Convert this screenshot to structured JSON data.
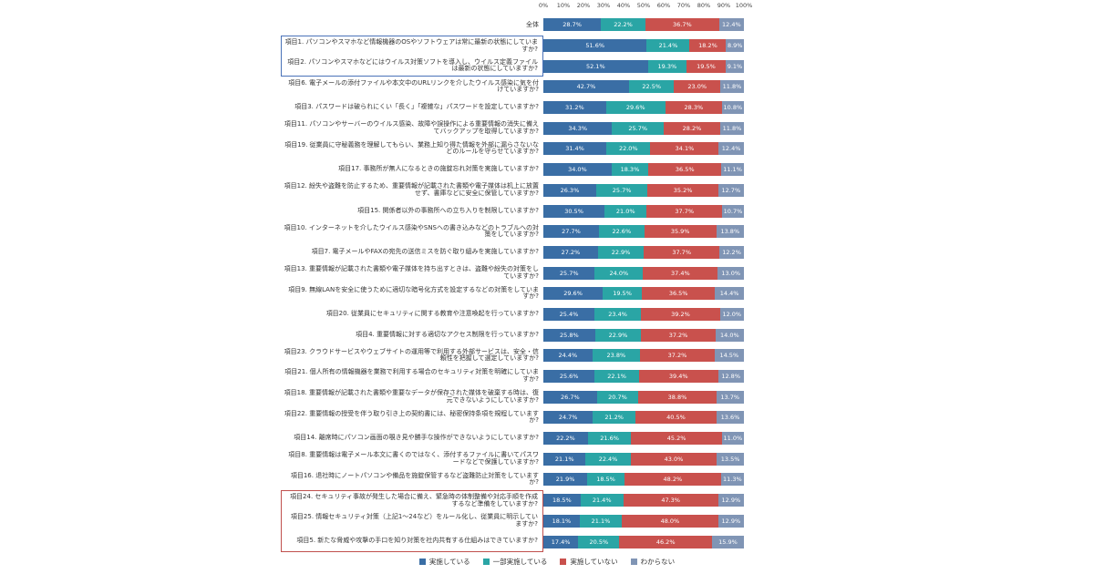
{
  "chart_data": {
    "type": "bar",
    "stacked": true,
    "orientation": "horizontal",
    "title": "",
    "x_axis": {
      "range": [
        0,
        100
      ],
      "ticks": [
        "0%",
        "10%",
        "20%",
        "30%",
        "40%",
        "50%",
        "60%",
        "70%",
        "80%",
        "90%",
        "100%"
      ]
    },
    "legend": [
      {
        "label": "実施している",
        "color": "#3a6ea5"
      },
      {
        "label": "一部実施している",
        "color": "#2aa5a5"
      },
      {
        "label": "実施していない",
        "color": "#c9514d"
      },
      {
        "label": "わからない",
        "color": "#8095b5"
      }
    ],
    "frame_colors": {
      "blue": "#4a72b8",
      "red": "#c0504d"
    },
    "rows": [
      {
        "label": "全体",
        "values": [
          28.7,
          22.2,
          36.7,
          12.4
        ]
      },
      {
        "label": "項目1. パソコンやスマホなど情報機器のOSやソフトウェアは常に最新の状態にしていますか?",
        "values": [
          51.6,
          21.4,
          18.2,
          8.9
        ],
        "frame": "blue"
      },
      {
        "label": "項目2. パソコンやスマホなどにはウイルス対策ソフトを導入し、ウイルス定義ファイルは最新の状態にしていますか?",
        "values": [
          52.1,
          19.3,
          19.5,
          9.1
        ],
        "frame": "blue"
      },
      {
        "label": "項目6. 電子メールの添付ファイルや本文中のURLリンクを介したウイルス感染に気を付けていますか?",
        "values": [
          42.7,
          22.5,
          23.0,
          11.8
        ]
      },
      {
        "label": "項目3. パスワードは破られにくい「長く」「複雑な」パスワードを設定していますか?",
        "values": [
          31.2,
          29.6,
          28.3,
          10.8
        ]
      },
      {
        "label": "項目11. パソコンやサーバーのウイルス感染、故障や誤操作による重要情報の消失に備えてバックアップを取得していますか?",
        "values": [
          34.3,
          25.7,
          28.2,
          11.8
        ]
      },
      {
        "label": "項目19. 従業員に守秘義務を理解してもらい、業務上知り得た情報を外部に漏らさないなどのルールを守らせていますか?",
        "values": [
          31.4,
          22.0,
          34.1,
          12.4
        ]
      },
      {
        "label": "項目17. 事務所が無人になるときの施錠忘れ対策を実施していますか?",
        "values": [
          34.0,
          18.3,
          36.5,
          11.1
        ]
      },
      {
        "label": "項目12. 紛失や盗難を防止するため、重要情報が記載された書類や電子媒体は机上に放置せず、書庫などに安全に保管していますか?",
        "values": [
          26.3,
          25.7,
          35.2,
          12.7
        ]
      },
      {
        "label": "項目15. 関係者以外の事務所への立ち入りを制限していますか?",
        "values": [
          30.5,
          21.0,
          37.7,
          10.7
        ]
      },
      {
        "label": "項目10. インターネットを介したウイルス感染やSNSへの書き込みなどのトラブルへの対策をしていますか?",
        "values": [
          27.7,
          22.6,
          35.9,
          13.8
        ]
      },
      {
        "label": "項目7. 電子メールやFAXの宛先の送信ミスを防ぐ取り組みを実施していますか?",
        "values": [
          27.2,
          22.9,
          37.7,
          12.2
        ]
      },
      {
        "label": "項目13. 重要情報が記載された書類や電子媒体を持ち出すときは、盗難や紛失の対策をしていますか?",
        "values": [
          25.7,
          24.0,
          37.4,
          13.0
        ]
      },
      {
        "label": "項目9. 無線LANを安全に使うために適切な暗号化方式を設定するなどの対策をしていますか?",
        "values": [
          29.6,
          19.5,
          36.5,
          14.4
        ]
      },
      {
        "label": "項目20. 従業員にセキュリティに関する教育や注意喚起を行っていますか?",
        "values": [
          25.4,
          23.4,
          39.2,
          12.0
        ]
      },
      {
        "label": "項目4. 重要情報に対する適切なアクセス制限を行っていますか?",
        "values": [
          25.8,
          22.9,
          37.2,
          14.0
        ]
      },
      {
        "label": "項目23. クラウドサービスやウェブサイトの運用等で利用する外部サービスは、安全・信頼性を把握して選定していますか?",
        "values": [
          24.4,
          23.8,
          37.2,
          14.5
        ]
      },
      {
        "label": "項目21. 個人所有の情報機器を業務で利用する場合のセキュリティ対策を明確にしていますか?",
        "values": [
          25.6,
          22.1,
          39.4,
          12.8
        ]
      },
      {
        "label": "項目18. 重要情報が記載された書類や重要なデータが保存された媒体を破棄する時は、復元できないようにしていますか?",
        "values": [
          26.7,
          20.7,
          38.8,
          13.7
        ]
      },
      {
        "label": "項目22. 重要情報の授受を伴う取り引き上の契約書には、秘密保持条項を規程していますか?",
        "values": [
          24.7,
          21.2,
          40.5,
          13.6
        ]
      },
      {
        "label": "項目14. 離席時にパソコン画面の覗き見や勝手な操作ができないようにしていますか?",
        "values": [
          22.2,
          21.6,
          45.2,
          11.0
        ]
      },
      {
        "label": "項目8. 重要情報は電子メール本文に書くのではなく、添付するファイルに書いてパスワードなどで保護していますか?",
        "values": [
          21.1,
          22.4,
          43.0,
          13.5
        ]
      },
      {
        "label": "項目16. 退社時にノートパソコンや備品を施錠保管するなど盗難防止対策をしていますか?",
        "values": [
          21.9,
          18.5,
          48.2,
          11.3
        ]
      },
      {
        "label": "項目24. セキュリティ事故が発生した場合に備え、緊急時の体制整備や対応手順を作成するなど準備をしていますか?",
        "values": [
          18.5,
          21.4,
          47.3,
          12.9
        ],
        "frame": "red"
      },
      {
        "label": "項目25. 情報セキュリティ対策（上記1～24など）をルール化し、従業員に明示していますか?",
        "values": [
          18.1,
          21.1,
          48.0,
          12.9
        ],
        "frame": "red"
      },
      {
        "label": "項目5. 新たな脅威や攻撃の手口を知り対策を社内共有する仕組みはできていますか?",
        "values": [
          17.4,
          20.5,
          46.2,
          15.9
        ],
        "frame": "red"
      }
    ]
  }
}
